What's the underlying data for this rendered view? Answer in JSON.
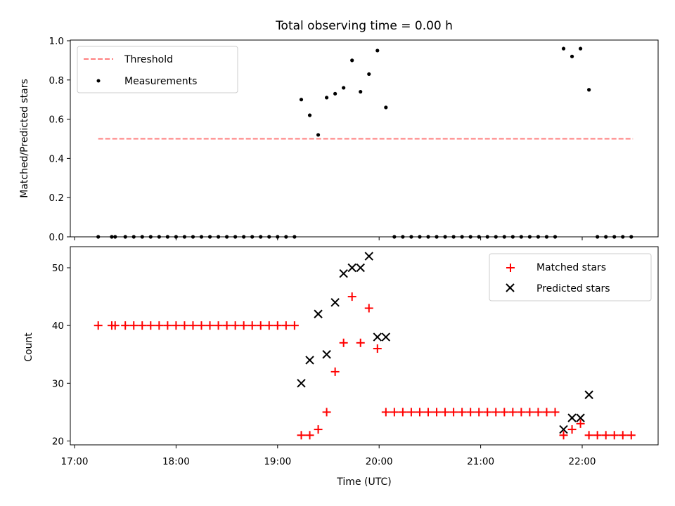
{
  "chart_data": [
    {
      "type": "scatter",
      "title": "Total observing time = 0.00 h",
      "xlabel": "",
      "ylabel": "Matched/Predicted stars",
      "ylim": [
        0,
        1.0
      ],
      "yticks": [
        "0.0",
        "0.2",
        "0.4",
        "0.6",
        "0.8",
        "1.0"
      ],
      "xlim": [
        "17:00",
        "22:45"
      ],
      "legend": {
        "position": "top-left",
        "entries": [
          "Threshold",
          "Measurements"
        ]
      },
      "threshold": {
        "name": "Threshold",
        "value": 0.5,
        "x_start": "17:14",
        "x_end": "22:30",
        "color": "#ff7f7f",
        "style": "dashed"
      },
      "series": [
        {
          "name": "Measurements",
          "color": "#000000",
          "points": [
            [
              "17:14",
              0
            ],
            [
              "17:22",
              0
            ],
            [
              "17:24",
              0
            ],
            [
              "17:30",
              0
            ],
            [
              "17:35",
              0
            ],
            [
              "17:40",
              0
            ],
            [
              "17:45",
              0
            ],
            [
              "17:50",
              0
            ],
            [
              "17:55",
              0
            ],
            [
              "18:00",
              0
            ],
            [
              "18:05",
              0
            ],
            [
              "18:10",
              0
            ],
            [
              "18:15",
              0
            ],
            [
              "18:20",
              0
            ],
            [
              "18:25",
              0
            ],
            [
              "18:30",
              0
            ],
            [
              "18:35",
              0
            ],
            [
              "18:40",
              0
            ],
            [
              "18:45",
              0
            ],
            [
              "18:50",
              0
            ],
            [
              "18:55",
              0
            ],
            [
              "19:00",
              0
            ],
            [
              "19:05",
              0
            ],
            [
              "19:10",
              0
            ],
            [
              "19:14",
              0.7
            ],
            [
              "19:19",
              0.62
            ],
            [
              "19:24",
              0.52
            ],
            [
              "19:29",
              0.71
            ],
            [
              "19:34",
              0.73
            ],
            [
              "19:39",
              0.76
            ],
            [
              "19:44",
              0.9
            ],
            [
              "19:49",
              0.74
            ],
            [
              "19:54",
              0.83
            ],
            [
              "19:59",
              0.95
            ],
            [
              "20:04",
              0.66
            ],
            [
              "20:09",
              0
            ],
            [
              "20:14",
              0
            ],
            [
              "20:19",
              0
            ],
            [
              "20:24",
              0
            ],
            [
              "20:29",
              0
            ],
            [
              "20:34",
              0
            ],
            [
              "20:39",
              0
            ],
            [
              "20:44",
              0
            ],
            [
              "20:49",
              0
            ],
            [
              "20:54",
              0
            ],
            [
              "20:59",
              0
            ],
            [
              "21:04",
              0
            ],
            [
              "21:09",
              0
            ],
            [
              "21:14",
              0
            ],
            [
              "21:19",
              0
            ],
            [
              "21:24",
              0
            ],
            [
              "21:29",
              0
            ],
            [
              "21:34",
              0
            ],
            [
              "21:39",
              0
            ],
            [
              "21:44",
              0
            ],
            [
              "21:49",
              0.96
            ],
            [
              "21:54",
              0.92
            ],
            [
              "21:59",
              0.96
            ],
            [
              "22:04",
              0.75
            ],
            [
              "22:09",
              0
            ],
            [
              "22:14",
              0
            ],
            [
              "22:19",
              0
            ],
            [
              "22:24",
              0
            ],
            [
              "22:29",
              0
            ]
          ]
        }
      ]
    },
    {
      "type": "scatter",
      "title": "",
      "xlabel": "Time (UTC)",
      "ylabel": "Count",
      "ylim": [
        19.5,
        53.5
      ],
      "yticks": [
        "20",
        "30",
        "40",
        "50"
      ],
      "xlim": [
        "17:00",
        "22:45"
      ],
      "xticks": [
        "17:00",
        "18:00",
        "19:00",
        "20:00",
        "21:00",
        "22:00"
      ],
      "legend": {
        "position": "top-right",
        "entries": [
          "Matched stars",
          "Predicted stars"
        ]
      },
      "series": [
        {
          "name": "Matched stars",
          "color": "#ff0000",
          "marker": "plus",
          "points": [
            [
              "17:14",
              40
            ],
            [
              "17:22",
              40
            ],
            [
              "17:24",
              40
            ],
            [
              "17:30",
              40
            ],
            [
              "17:35",
              40
            ],
            [
              "17:40",
              40
            ],
            [
              "17:45",
              40
            ],
            [
              "17:50",
              40
            ],
            [
              "17:55",
              40
            ],
            [
              "18:00",
              40
            ],
            [
              "18:05",
              40
            ],
            [
              "18:10",
              40
            ],
            [
              "18:15",
              40
            ],
            [
              "18:20",
              40
            ],
            [
              "18:25",
              40
            ],
            [
              "18:30",
              40
            ],
            [
              "18:35",
              40
            ],
            [
              "18:40",
              40
            ],
            [
              "18:45",
              40
            ],
            [
              "18:50",
              40
            ],
            [
              "18:55",
              40
            ],
            [
              "19:00",
              40
            ],
            [
              "19:05",
              40
            ],
            [
              "19:10",
              40
            ],
            [
              "19:14",
              21
            ],
            [
              "19:19",
              21
            ],
            [
              "19:24",
              22
            ],
            [
              "19:29",
              25
            ],
            [
              "19:34",
              32
            ],
            [
              "19:39",
              37
            ],
            [
              "19:44",
              45
            ],
            [
              "19:49",
              37
            ],
            [
              "19:54",
              43
            ],
            [
              "19:59",
              36
            ],
            [
              "20:04",
              25
            ],
            [
              "20:09",
              25
            ],
            [
              "20:14",
              25
            ],
            [
              "20:19",
              25
            ],
            [
              "20:24",
              25
            ],
            [
              "20:29",
              25
            ],
            [
              "20:34",
              25
            ],
            [
              "20:39",
              25
            ],
            [
              "20:44",
              25
            ],
            [
              "20:49",
              25
            ],
            [
              "20:54",
              25
            ],
            [
              "20:59",
              25
            ],
            [
              "21:04",
              25
            ],
            [
              "21:09",
              25
            ],
            [
              "21:14",
              25
            ],
            [
              "21:19",
              25
            ],
            [
              "21:24",
              25
            ],
            [
              "21:29",
              25
            ],
            [
              "21:34",
              25
            ],
            [
              "21:39",
              25
            ],
            [
              "21:44",
              25
            ],
            [
              "21:49",
              21
            ],
            [
              "21:54",
              22
            ],
            [
              "21:59",
              23
            ],
            [
              "22:04",
              21
            ],
            [
              "22:09",
              21
            ],
            [
              "22:14",
              21
            ],
            [
              "22:19",
              21
            ],
            [
              "22:24",
              21
            ],
            [
              "22:29",
              21
            ]
          ]
        },
        {
          "name": "Predicted stars",
          "color": "#000000",
          "marker": "x",
          "points": [
            [
              "19:14",
              30
            ],
            [
              "19:19",
              34
            ],
            [
              "19:24",
              42
            ],
            [
              "19:29",
              35
            ],
            [
              "19:34",
              44
            ],
            [
              "19:39",
              49
            ],
            [
              "19:44",
              50
            ],
            [
              "19:49",
              50
            ],
            [
              "19:54",
              52
            ],
            [
              "19:59",
              38
            ],
            [
              "20:04",
              38
            ],
            [
              "21:49",
              22
            ],
            [
              "21:54",
              24
            ],
            [
              "21:59",
              24
            ],
            [
              "22:04",
              28
            ]
          ]
        }
      ]
    }
  ]
}
